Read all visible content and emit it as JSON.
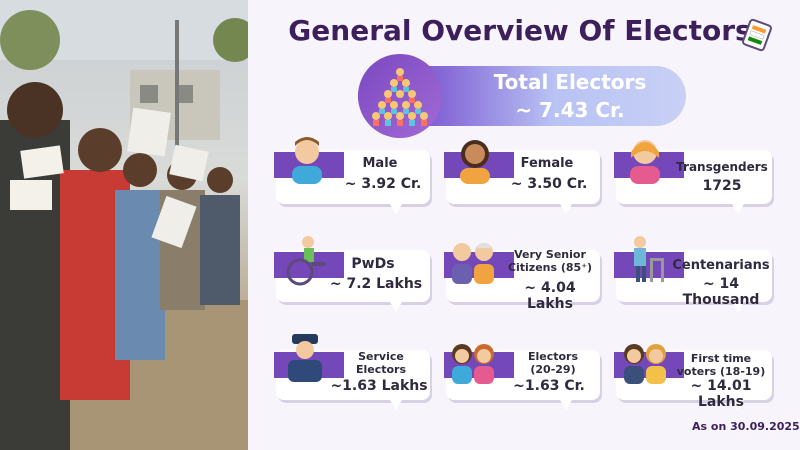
{
  "header": {
    "title": "General Overview Of Electors",
    "total_label": "Total Electors",
    "total_value": "~ 7.43 Cr."
  },
  "cards": [
    {
      "label": "Male",
      "value": "~ 3.92 Cr.",
      "icon": "male-icon"
    },
    {
      "label": "Female",
      "value": "~ 3.50 Cr.",
      "icon": "female-icon"
    },
    {
      "label": "Transgenders",
      "value": "1725",
      "icon": "transgender-icon"
    },
    {
      "label": "PwDs",
      "value": "~ 7.2 Lakhs",
      "icon": "wheelchair-icon"
    },
    {
      "label": "Very Senior Citizens (85⁺)",
      "value": "~ 4.04 Lakhs",
      "icon": "senior-couple-icon"
    },
    {
      "label": "Centenarians",
      "value": "~ 14 Thousand",
      "icon": "walker-icon"
    },
    {
      "label": "Service Electors",
      "value": "~1.63 Lakhs",
      "icon": "police-officer-icon"
    },
    {
      "label": "Electors (20-29)",
      "value": "~1.63 Cr.",
      "icon": "young-women-icon"
    },
    {
      "label": "First time voters (18-19)",
      "value": "~ 14.01 Lakhs",
      "icon": "first-voters-icon"
    }
  ],
  "footer": {
    "as_on": "As on 30.09.2025"
  },
  "colors": {
    "title": "#3d1f5c",
    "accent": "#7448b8",
    "panel_bg": "#f7f5fb"
  }
}
